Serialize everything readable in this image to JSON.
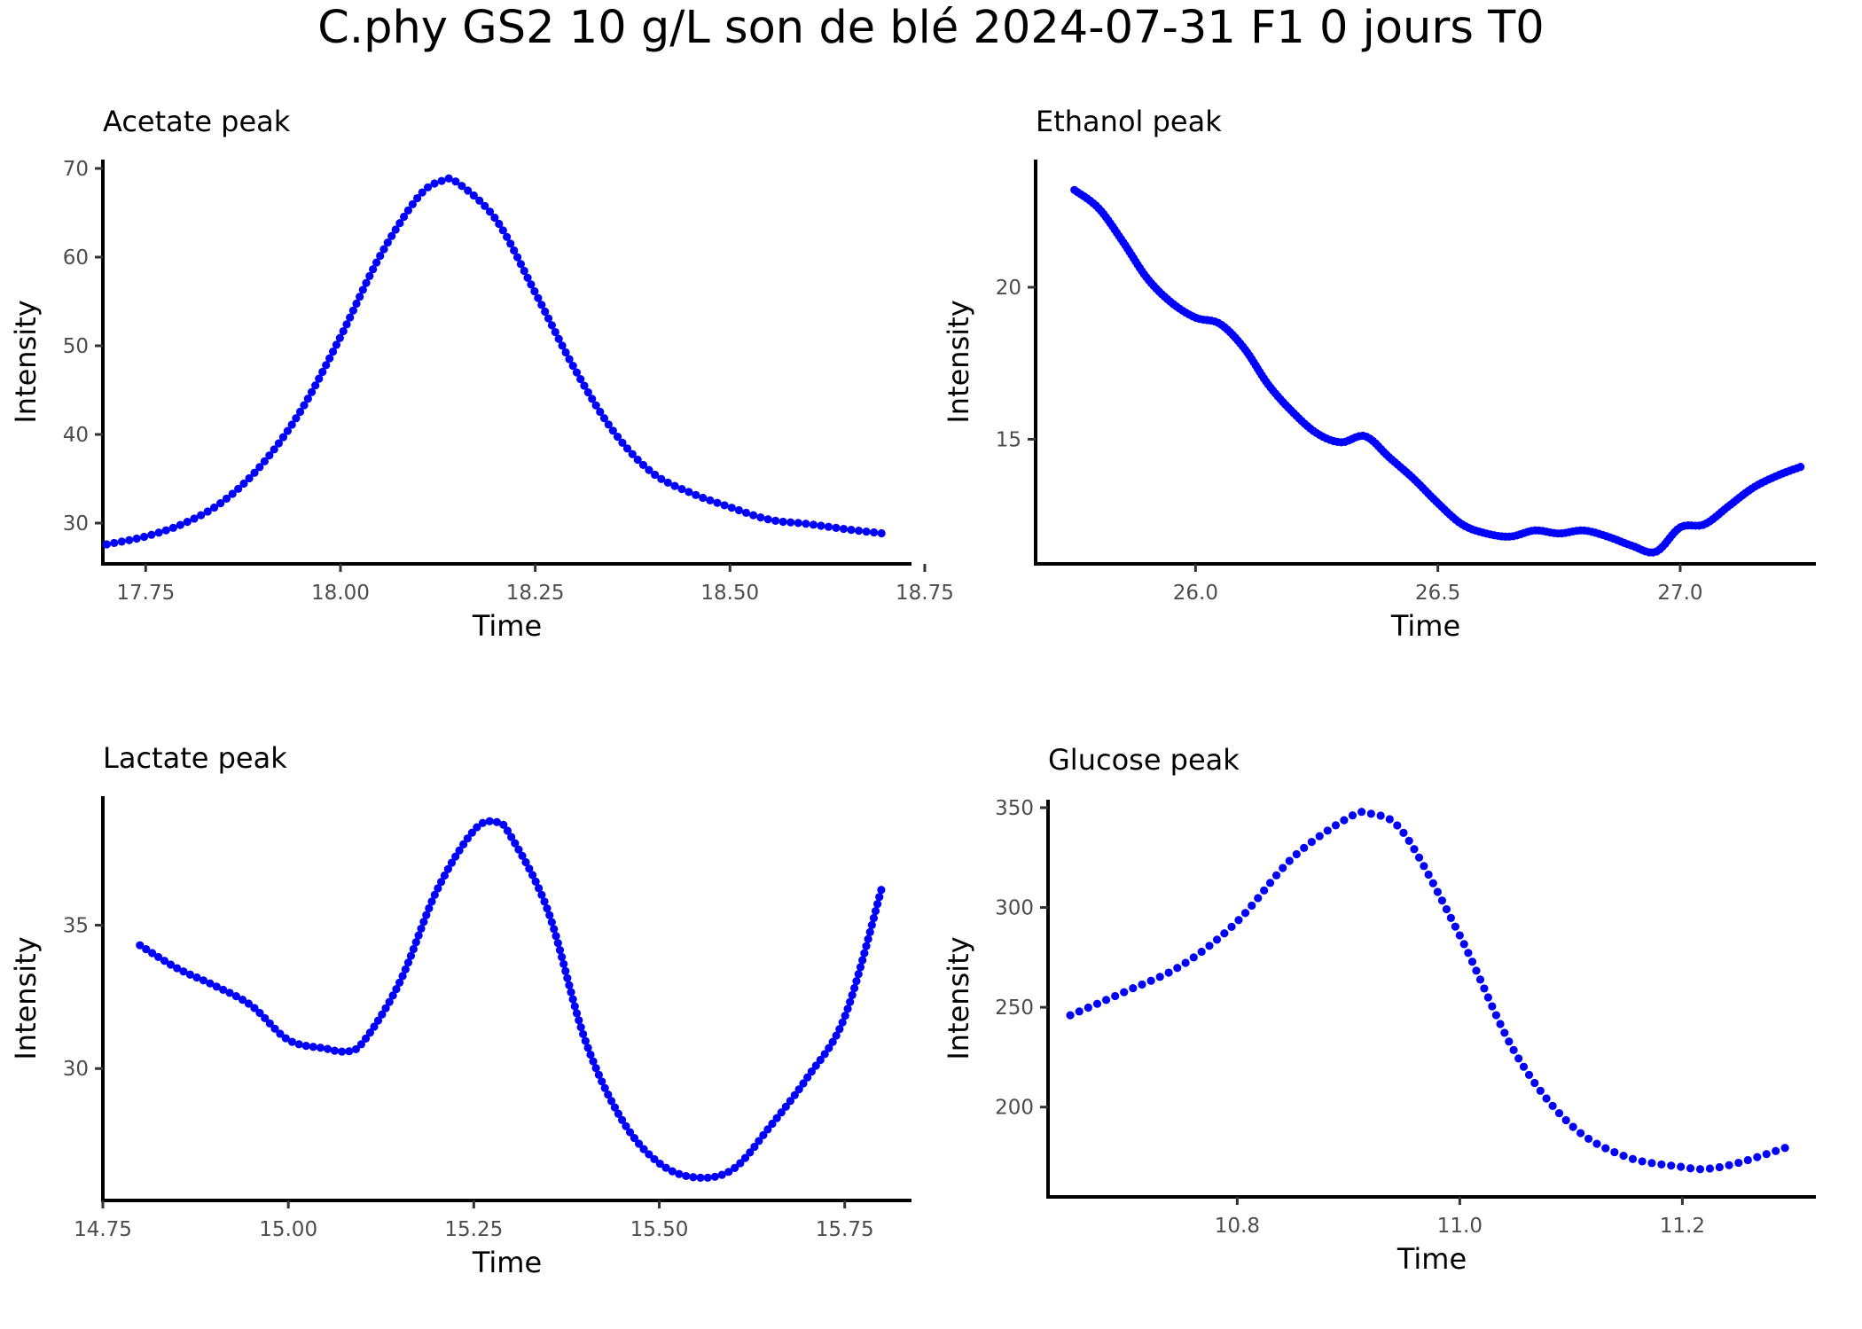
{
  "title": "C.phy GS2 10 g/L son de blé 2024-07-31 F1 0 jours T0",
  "colors": {
    "points": "#0000ff",
    "axis": "#000000",
    "tick_text": "#4d4d4d"
  },
  "chart_data": [
    {
      "type": "scatter",
      "title": "Acetate peak",
      "xlabel": "Time",
      "ylabel": "Intensity",
      "xlim": [
        17.695,
        18.733
      ],
      "ylim": [
        25.4,
        71.0
      ],
      "xticks": [
        17.75,
        18.0,
        18.25,
        18.5,
        18.75
      ],
      "xtick_labels": [
        "17.75",
        "18.00",
        "18.25",
        "18.50",
        "18.75"
      ],
      "yticks": [
        30,
        40,
        50,
        60,
        70
      ],
      "ytick_labels": [
        "30",
        "40",
        "50",
        "60",
        "70"
      ],
      "x": [
        17.7,
        17.75,
        17.8,
        17.85,
        17.9,
        17.95,
        18.0,
        18.05,
        18.1,
        18.13,
        18.15,
        18.2,
        18.25,
        18.3,
        18.35,
        18.4,
        18.45,
        18.5,
        18.55,
        18.6,
        18.65,
        18.7
      ],
      "y": [
        27.6,
        28.5,
        30.0,
        32.5,
        36.7,
        42.8,
        51.0,
        60.0,
        66.8,
        68.6,
        68.4,
        64.2,
        56.0,
        47.5,
        40.4,
        35.7,
        33.4,
        31.8,
        30.4,
        29.9,
        29.3,
        28.8
      ]
    },
    {
      "type": "scatter",
      "title": "Ethanol peak",
      "xlabel": "Time",
      "ylabel": "Intensity",
      "xlim": [
        25.67,
        27.28
      ],
      "ylim": [
        10.9,
        24.2
      ],
      "xticks": [
        26.0,
        26.5,
        27.0
      ],
      "xtick_labels": [
        "26.0",
        "26.5",
        "27.0"
      ],
      "yticks": [
        15,
        20
      ],
      "ytick_labels": [
        "15",
        "20"
      ],
      "x": [
        25.75,
        25.8,
        25.85,
        25.9,
        25.95,
        26.0,
        26.05,
        26.1,
        26.15,
        26.2,
        26.25,
        26.3,
        26.35,
        26.4,
        26.45,
        26.5,
        26.55,
        26.6,
        26.65,
        26.7,
        26.75,
        26.8,
        26.85,
        26.9,
        26.95,
        27.0,
        27.05,
        27.1,
        27.15,
        27.2,
        27.25
      ],
      "y": [
        23.2,
        22.6,
        21.5,
        20.3,
        19.5,
        19.0,
        18.8,
        18.0,
        16.8,
        15.9,
        15.2,
        14.9,
        15.1,
        14.4,
        13.7,
        12.9,
        12.2,
        11.9,
        11.8,
        12.0,
        11.9,
        12.0,
        11.8,
        11.5,
        11.3,
        12.1,
        12.2,
        12.8,
        13.4,
        13.8,
        14.1
      ]
    },
    {
      "type": "scatter",
      "title": "Lactate peak",
      "xlabel": "Time",
      "ylabel": "Intensity",
      "xlim": [
        14.75,
        15.84
      ],
      "ylim": [
        25.4,
        39.5
      ],
      "xticks": [
        14.75,
        15.0,
        15.25,
        15.5,
        15.75
      ],
      "xtick_labels": [
        "14.75",
        "15.00",
        "15.25",
        "15.50",
        "15.75"
      ],
      "yticks": [
        30,
        35
      ],
      "ytick_labels": [
        "30",
        "35"
      ],
      "x": [
        14.8,
        14.85,
        14.9,
        14.95,
        15.0,
        15.05,
        15.075,
        15.1,
        15.15,
        15.2,
        15.25,
        15.28,
        15.3,
        15.35,
        15.4,
        15.45,
        15.5,
        15.55,
        15.6,
        15.65,
        15.7,
        15.75,
        15.8
      ],
      "y": [
        34.3,
        33.5,
        32.9,
        32.2,
        31.0,
        30.7,
        30.6,
        30.9,
        33.0,
        36.2,
        38.3,
        38.6,
        38.1,
        35.5,
        31.0,
        28.2,
        26.7,
        26.2,
        26.5,
        28.0,
        29.7,
        31.8,
        36.3
      ]
    },
    {
      "type": "scatter",
      "title": "Glucose peak",
      "xlabel": "Time",
      "ylabel": "Intensity",
      "xlim": [
        10.63,
        11.32
      ],
      "ylim": [
        155.0,
        354.0
      ],
      "xticks": [
        10.8,
        11.0,
        11.2
      ],
      "xtick_labels": [
        "10.8",
        "11.0",
        "11.2"
      ],
      "yticks": [
        200,
        250,
        300,
        350
      ],
      "ytick_labels": [
        "200",
        "250",
        "300",
        "350"
      ],
      "x": [
        10.65,
        10.7,
        10.75,
        10.8,
        10.85,
        10.9,
        10.92,
        10.95,
        11.0,
        11.05,
        11.1,
        11.15,
        11.2,
        11.22,
        11.25,
        11.3
      ],
      "y": [
        246.0,
        258.0,
        271.0,
        293.0,
        325.0,
        345.0,
        347.0,
        337.0,
        286.0,
        227.0,
        191.0,
        175.0,
        170.0,
        169.0,
        172.0,
        181.0
      ]
    }
  ]
}
